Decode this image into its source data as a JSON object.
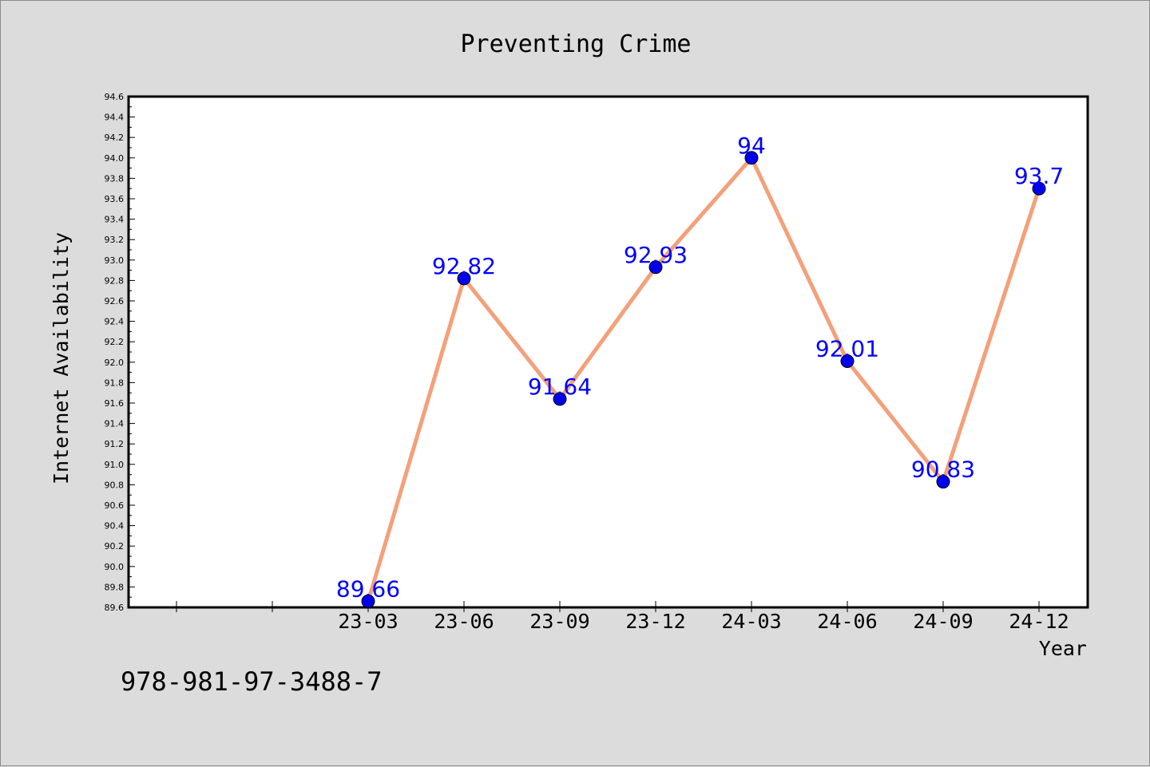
{
  "chart_data": {
    "type": "line",
    "title": "Preventing Crime",
    "xlabel": "Year",
    "ylabel": "Internet Availability",
    "categories": [
      "23-03",
      "23-06",
      "23-09",
      "23-12",
      "24-03",
      "24-06",
      "24-09",
      "24-12"
    ],
    "values": [
      89.66,
      92.82,
      91.64,
      92.93,
      94,
      92.01,
      90.83,
      93.7
    ],
    "value_labels": [
      "89.66",
      "92.82",
      "91.64",
      "92.93",
      "94",
      "92.01",
      "90.83",
      "93.7"
    ],
    "ylim": [
      89.6,
      94.6
    ],
    "yticks": [
      "89.6",
      "89.8",
      "90.0",
      "90.2",
      "90.4",
      "90.6",
      "90.8",
      "91.0",
      "91.2",
      "91.4",
      "91.6",
      "91.8",
      "92.0",
      "92.2",
      "92.4",
      "92.6",
      "92.8",
      "93.0",
      "93.2",
      "93.4",
      "93.6",
      "93.8",
      "94.0",
      "94.2",
      "94.4",
      "94.6"
    ],
    "grid": false,
    "legend": "none",
    "line_color": "#f4a07a",
    "marker_color": "#0000ee",
    "label_color": "#0000ff"
  },
  "footer": {
    "isbn": "978-981-97-3488-7"
  }
}
